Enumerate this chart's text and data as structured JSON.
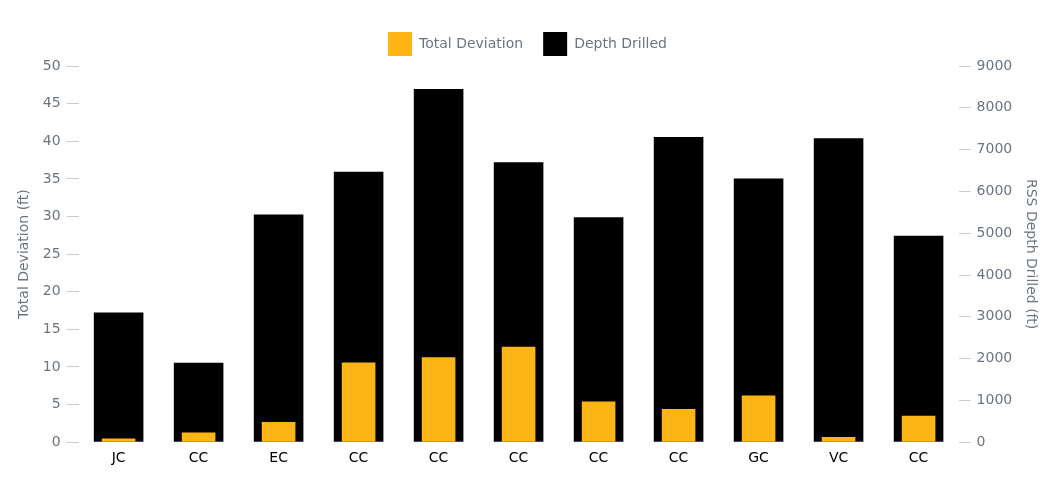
{
  "chart_data": {
    "type": "bar",
    "ylabel": "Total Deviation (ft)",
    "y2label": "RSS Depth Drilled (ft)",
    "categories": [
      "JC",
      "CC",
      "EC",
      "CC",
      "CC",
      "CC",
      "CC",
      "CC",
      "GC",
      "VC",
      "CC"
    ],
    "series": [
      {
        "name": "Total Deviation",
        "color": "#fdb515",
        "values": [
          0.5,
          1.3,
          2.7,
          10.6,
          11.3,
          12.7,
          5.4,
          4.4,
          6.2,
          0.7,
          3.5
        ]
      },
      {
        "name": "Depth Drilled",
        "color": "#000000",
        "axis": "y2",
        "values": [
          3100,
          1900,
          5450,
          6470,
          8450,
          6700,
          5380,
          7300,
          6310,
          7270,
          4940
        ]
      }
    ],
    "ylim": [
      0,
      50
    ],
    "yticks": [
      0,
      5,
      10,
      15,
      20,
      25,
      30,
      35,
      40,
      45,
      50
    ],
    "y2lim": [
      0,
      9000
    ],
    "y2ticks": [
      0,
      1000,
      2000,
      3000,
      4000,
      5000,
      6000,
      7000,
      8000,
      9000
    ],
    "legend": "top",
    "grid": false
  }
}
